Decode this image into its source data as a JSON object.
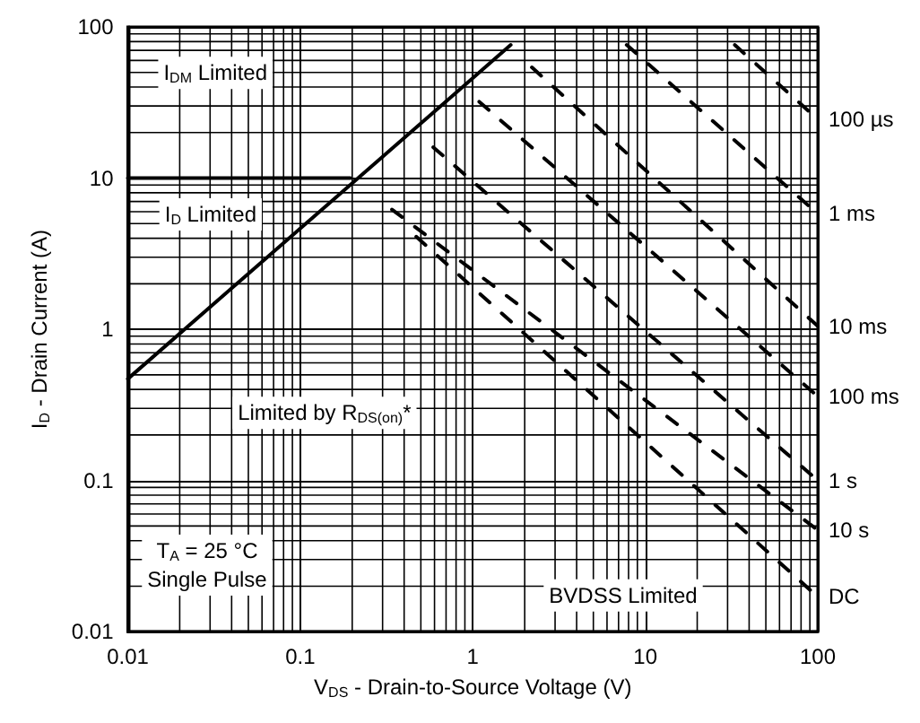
{
  "chart_data": {
    "type": "line",
    "log": "xy",
    "grid": true,
    "xlabel": "V$_{DS}$ - Drain-to-Source Voltage (V)",
    "ylabel": "I$_{D}$ - Drain Current (A)",
    "xlim": [
      0.01,
      100
    ],
    "xticks": [
      0.01,
      0.1,
      1,
      10,
      100
    ],
    "ylim": [
      0.01,
      100
    ],
    "yticks": [
      0.01,
      0.1,
      1,
      10,
      100
    ],
    "series": [
      {
        "color": "#000000",
        "line_style": "solid",
        "x": [
          0.01,
          1.66
        ],
        "values": [
          0.47,
          76
        ]
      },
      {
        "color": "#000000",
        "line_style": "solid",
        "x": [
          0.01,
          0.195
        ],
        "values": [
          10,
          10
        ]
      },
      {
        "name": "100 µs",
        "color": "#000000",
        "line_style": "dashed",
        "x": [
          33,
          100
        ],
        "values": [
          76,
          24.5
        ]
      },
      {
        "name": "1 ms",
        "color": "#000000",
        "line_style": "dashed",
        "x": [
          7.8,
          100
        ],
        "values": [
          76,
          5.8
        ]
      },
      {
        "name": "10 ms",
        "color": "#000000",
        "line_style": "dashed",
        "x": [
          2.2,
          100
        ],
        "values": [
          54,
          1.05
        ]
      },
      {
        "name": "100 ms",
        "color": "#000000",
        "line_style": "dashed",
        "x": [
          1.09,
          100
        ],
        "values": [
          32,
          0.36
        ]
      },
      {
        "name": "1 s",
        "color": "#000000",
        "line_style": "dashed",
        "x": [
          0.59,
          100
        ],
        "values": [
          16,
          0.1
        ]
      },
      {
        "name": "10 s",
        "color": "#000000",
        "line_style": "dashed",
        "x": [
          0.34,
          100
        ],
        "values": [
          6.2,
          0.047
        ]
      },
      {
        "name": "DC",
        "color": "#000000",
        "line_style": "dashed",
        "x": [
          0.47,
          100
        ],
        "values": [
          4.1,
          0.017
        ]
      }
    ],
    "annotations": [
      "I$_{DM}$ Limited",
      "I$_{D}$ Limited",
      "Limited by R$_{DS(on)}$*",
      "BVDSS Limited",
      "T$_{A}$ = 25 °C\nSingle Pulse"
    ]
  }
}
